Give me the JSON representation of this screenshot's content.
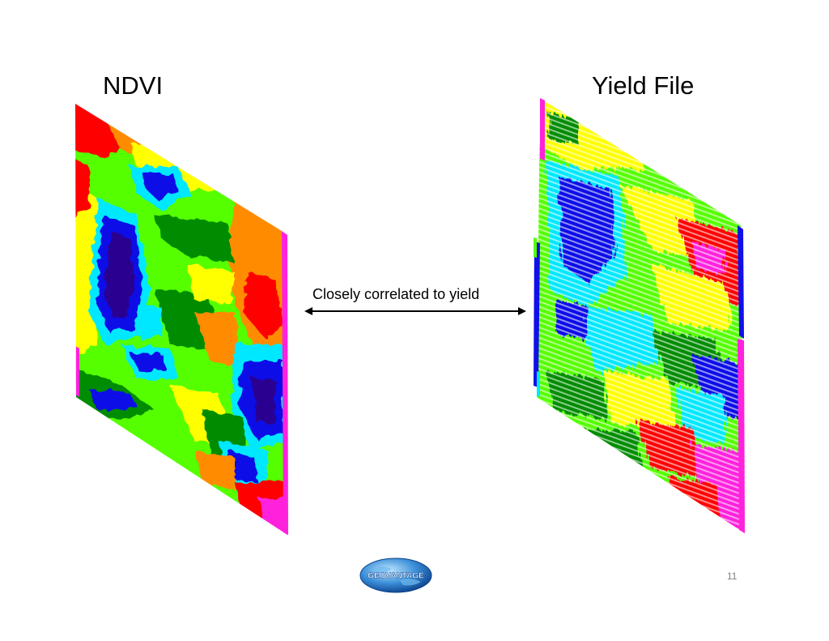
{
  "slide": {
    "left_title": "NDVI",
    "right_title": "Yield File",
    "arrow_label": "Closely correlated to yield",
    "page_number": "11",
    "logo_text": "GEOVANTAGE"
  },
  "colors": {
    "magenta": "#ff22dd",
    "red": "#ff0000",
    "orange": "#ff8c00",
    "yellow": "#ffff00",
    "lime": "#55ff00",
    "green": "#008c00",
    "cyan": "#00e8ff",
    "blue": "#1010e8",
    "navy": "#2a0090",
    "white": "#ffffff"
  },
  "icons": {
    "logo": "globe-logo-icon",
    "arrow": "double-headed-arrow-icon"
  }
}
